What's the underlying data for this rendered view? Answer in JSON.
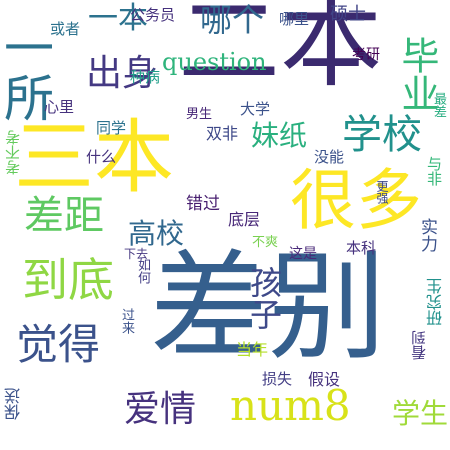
{
  "words": {
    "w01": {
      "text": "二本",
      "color": "#3b2a6f"
    },
    "w02": {
      "text": "差别",
      "color": "#355f8d"
    },
    "w03": {
      "text": "三本",
      "color": "#fde725"
    },
    "w04": {
      "text": "很多",
      "color": "#fde725"
    },
    "w05": {
      "text": "一所",
      "color": "#2c728e"
    },
    "w06": {
      "text": "到底",
      "color": "#8fd744"
    },
    "w07": {
      "text": "差距",
      "color": "#5ec962"
    },
    "w08": {
      "text": "觉得",
      "color": "#3b528b"
    },
    "w09": {
      "text": "学校",
      "color": "#21918c"
    },
    "w10": {
      "text": "num8",
      "color": "#d8e219"
    },
    "w11": {
      "text": "出身",
      "color": "#443983"
    },
    "w12": {
      "text": "毕业",
      "color": "#35b779"
    },
    "w13": {
      "text": "高校",
      "color": "#31688e"
    },
    "w14": {
      "text": "爱情",
      "color": "#46327e"
    },
    "w15": {
      "text": "孩子",
      "color": "#3e4989"
    },
    "w16": {
      "text": "question",
      "color": "#2fb47c"
    },
    "w17": {
      "text": "哪个",
      "color": "#31688e"
    },
    "w18": {
      "text": "妹纸",
      "color": "#2ab07f"
    },
    "w19": {
      "text": "学生",
      "color": "#a0da39"
    },
    "w20": {
      "text": "一本",
      "color": "#2c728e"
    },
    "w21": {
      "text": "公务员",
      "color": "#46327e"
    },
    "w22": {
      "text": "哪里",
      "color": "#3b528b"
    },
    "w23": {
      "text": "硕士",
      "color": "#414487"
    },
    "w24": {
      "text": "或者",
      "color": "#2c728e"
    },
    "w25": {
      "text": "考研",
      "color": "#440154"
    },
    "w26": {
      "text": "种病",
      "color": "#1f9e89"
    },
    "w27": {
      "text": "大学",
      "color": "#3b528b"
    },
    "w28": {
      "text": "心里",
      "color": "#46327e"
    },
    "w29": {
      "text": "男生",
      "color": "#482878"
    },
    "w30": {
      "text": "同学",
      "color": "#2c728e"
    },
    "w31": {
      "text": "双非",
      "color": "#3e4989"
    },
    "w32": {
      "text": "最差",
      "color": "#27ad81"
    },
    "w33": {
      "text": "考不考",
      "color": "#65cb5e"
    },
    "w34": {
      "text": "什么",
      "color": "#46327e"
    },
    "w35": {
      "text": "没能",
      "color": "#3b528b"
    },
    "w36": {
      "text": "与非",
      "color": "#35b779"
    },
    "w37": {
      "text": "更强",
      "color": "#3e4989"
    },
    "w38": {
      "text": "错过",
      "color": "#481f70"
    },
    "w39": {
      "text": "底层",
      "color": "#482878"
    },
    "w40": {
      "text": "实力",
      "color": "#3b528b"
    },
    "w41": {
      "text": "下去",
      "color": "#453781"
    },
    "w42": {
      "text": "不爽",
      "color": "#7ad151"
    },
    "w43": {
      "text": "这是",
      "color": "#482878"
    },
    "w44": {
      "text": "本科",
      "color": "#46327e"
    },
    "w45": {
      "text": "如何",
      "color": "#433e85"
    },
    "w46": {
      "text": "研究生",
      "color": "#21918c"
    },
    "w47": {
      "text": "过来",
      "color": "#3b528b"
    },
    "w48": {
      "text": "当年",
      "color": "#b5de2b"
    },
    "w49": {
      "text": "看到",
      "color": "#453781"
    },
    "w50": {
      "text": "损失",
      "color": "#433e85"
    },
    "w51": {
      "text": "假设",
      "color": "#46327e"
    },
    "w52": {
      "text": "保送",
      "color": "#3b528b"
    }
  }
}
